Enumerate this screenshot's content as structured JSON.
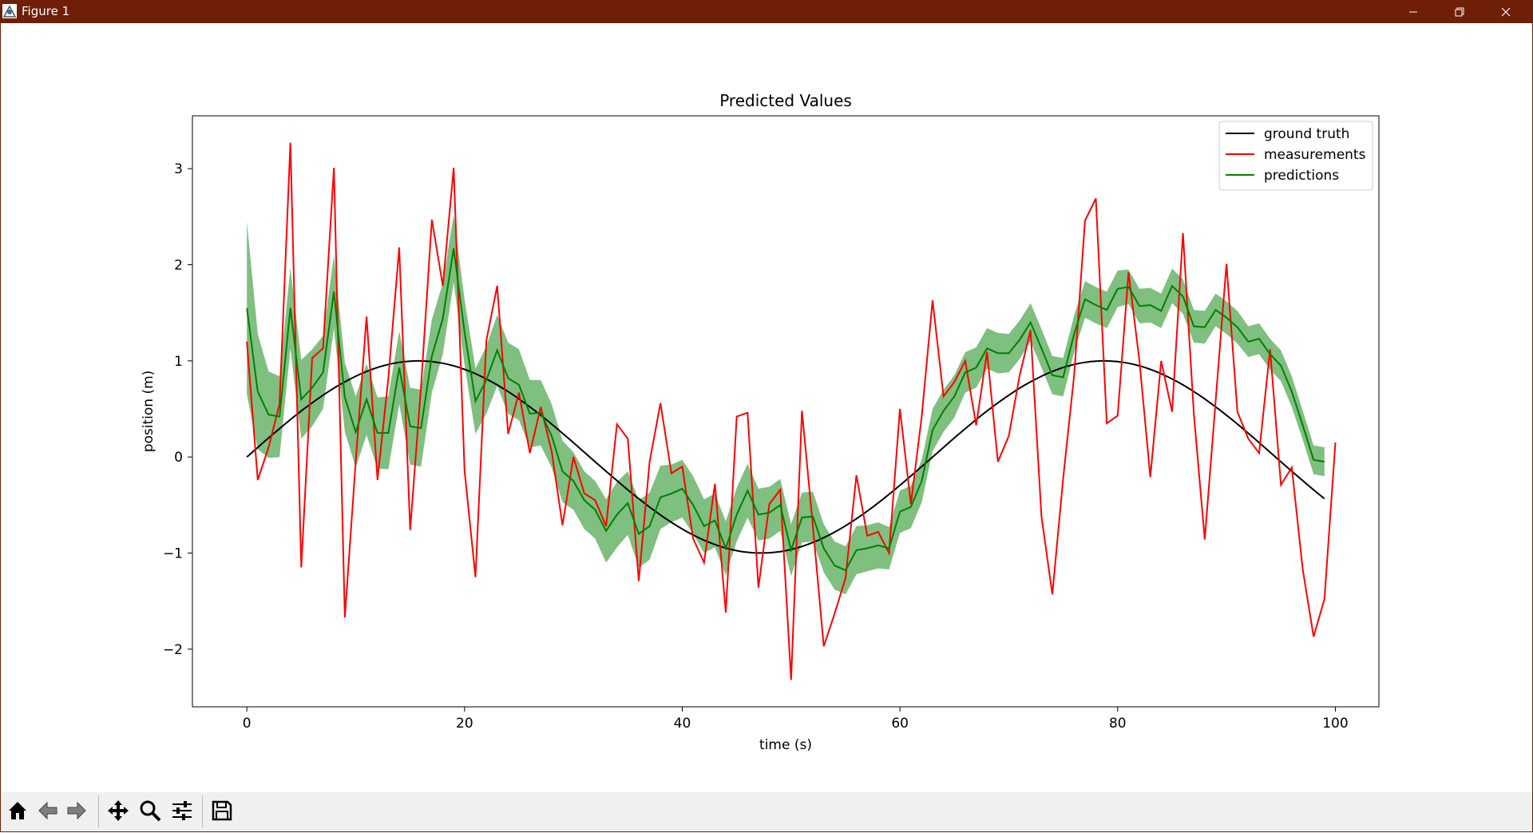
{
  "window": {
    "title": "Figure 1",
    "titlebar_color": "#6f1f07",
    "buttons": [
      "minimize-icon",
      "restore-icon",
      "close-icon"
    ]
  },
  "toolbar": {
    "buttons": [
      "home-icon",
      "back-arrow-icon",
      "forward-arrow-icon",
      "pan-icon",
      "zoom-icon",
      "configure-subplots-icon",
      "save-icon"
    ]
  },
  "chart_data": {
    "type": "line",
    "title": "Predicted Values",
    "xlabel": "time (s)",
    "ylabel": "position (m)",
    "xlim": [
      -5,
      104
    ],
    "ylim": [
      -2.6,
      3.55
    ],
    "xticks": [
      0,
      20,
      40,
      60,
      80,
      100
    ],
    "xtick_labels": [
      "0",
      "20",
      "40",
      "60",
      "80",
      "100"
    ],
    "yticks": [
      -2,
      -1,
      0,
      1,
      2,
      3
    ],
    "ytick_labels": [
      "−2",
      "−1",
      "0",
      "1",
      "2",
      "3"
    ],
    "grid": false,
    "legend_position": "top-right",
    "series": [
      {
        "name": "ground truth",
        "color": "#000000",
        "function": "sin(2*pi*t/63)",
        "x": [
          0,
          99
        ],
        "note_values": "y = sin(0.0997·t), t = 0..99 step 1"
      },
      {
        "name": "measurements",
        "color": "#ff0000",
        "x_start": 0,
        "x_step": 1,
        "values": [
          1.2,
          -0.24,
          0.1,
          0.55,
          3.27,
          -1.15,
          1.03,
          1.13,
          3.01,
          -1.67,
          -0.05,
          1.46,
          -0.24,
          0.82,
          2.18,
          -0.76,
          0.73,
          2.47,
          1.78,
          3.01,
          -0.14,
          -1.25,
          1.21,
          1.78,
          0.24,
          0.67,
          0.04,
          0.52,
          0.06,
          -0.71,
          0.0,
          -0.38,
          -0.45,
          -0.72,
          0.34,
          0.19,
          -1.29,
          -0.05,
          0.56,
          -0.17,
          -0.1,
          -0.85,
          -1.1,
          -0.28,
          -1.62,
          0.42,
          0.46,
          -1.36,
          -0.49,
          -0.34,
          -2.32,
          0.48,
          -0.72,
          -1.97,
          -1.63,
          -1.26,
          -0.19,
          -0.82,
          -0.78,
          -1.0,
          0.5,
          -0.49,
          0.42,
          1.63,
          0.63,
          0.78,
          1.0,
          0.33,
          1.09,
          -0.05,
          0.22,
          0.85,
          1.32,
          -0.62,
          -1.43,
          -0.22,
          0.85,
          2.46,
          2.69,
          0.35,
          0.43,
          1.92,
          1.0,
          -0.21,
          1.0,
          0.47,
          2.33,
          0.45,
          -0.86,
          0.58,
          2.01,
          0.47,
          0.19,
          0.04,
          1.12,
          -0.29,
          -0.11,
          -1.17,
          -1.87,
          -1.48,
          0.15
        ]
      },
      {
        "name": "predictions",
        "color": "#008000",
        "band_color": "#008000",
        "band_opacity": 0.5,
        "x_start": 0,
        "x_step": 1,
        "values": [
          1.55,
          0.68,
          0.44,
          0.42,
          1.55,
          0.6,
          0.72,
          0.88,
          1.72,
          0.62,
          0.26,
          0.6,
          0.25,
          0.25,
          0.93,
          0.32,
          0.3,
          1.05,
          1.44,
          2.17,
          1.3,
          0.58,
          0.8,
          1.11,
          0.82,
          0.75,
          0.45,
          0.46,
          0.22,
          -0.15,
          -0.25,
          -0.45,
          -0.55,
          -0.77,
          -0.6,
          -0.48,
          -0.8,
          -0.72,
          -0.42,
          -0.38,
          -0.33,
          -0.5,
          -0.72,
          -0.66,
          -0.95,
          -0.6,
          -0.35,
          -0.6,
          -0.58,
          -0.5,
          -0.97,
          -0.63,
          -0.62,
          -0.95,
          -1.13,
          -1.18,
          -0.97,
          -0.95,
          -0.92,
          -0.95,
          -0.57,
          -0.52,
          -0.25,
          0.28,
          0.48,
          0.63,
          0.88,
          0.93,
          1.13,
          1.08,
          1.08,
          1.22,
          1.4,
          1.13,
          0.85,
          0.83,
          1.28,
          1.64,
          1.58,
          1.53,
          1.75,
          1.77,
          1.57,
          1.58,
          1.52,
          1.78,
          1.67,
          1.36,
          1.35,
          1.53,
          1.45,
          1.35,
          1.2,
          1.23,
          1.07,
          0.95,
          0.68,
          0.33,
          -0.03,
          -0.05
        ],
        "band_halfwidth": [
          0.9,
          0.6,
          0.45,
          0.42,
          0.42,
          0.41,
          0.4,
          0.38,
          0.38,
          0.36,
          0.37,
          0.37,
          0.37,
          0.38,
          0.38,
          0.4,
          0.4,
          0.38,
          0.37,
          0.35,
          0.34,
          0.34,
          0.35,
          0.37,
          0.37,
          0.37,
          0.35,
          0.34,
          0.33,
          0.32,
          0.3,
          0.3,
          0.3,
          0.33,
          0.34,
          0.33,
          0.35,
          0.35,
          0.33,
          0.3,
          0.3,
          0.3,
          0.28,
          0.28,
          0.28,
          0.28,
          0.28,
          0.27,
          0.27,
          0.27,
          0.27,
          0.26,
          0.26,
          0.25,
          0.25,
          0.25,
          0.25,
          0.24,
          0.24,
          0.22,
          0.22,
          0.22,
          0.22,
          0.22,
          0.22,
          0.22,
          0.21,
          0.21,
          0.21,
          0.21,
          0.2,
          0.2,
          0.2,
          0.2,
          0.2,
          0.2,
          0.19,
          0.19,
          0.19,
          0.19,
          0.19,
          0.18,
          0.18,
          0.18,
          0.18,
          0.18,
          0.18,
          0.17,
          0.17,
          0.17,
          0.17,
          0.17,
          0.16,
          0.16,
          0.16,
          0.16,
          0.16,
          0.15,
          0.15,
          0.15
        ]
      }
    ]
  }
}
